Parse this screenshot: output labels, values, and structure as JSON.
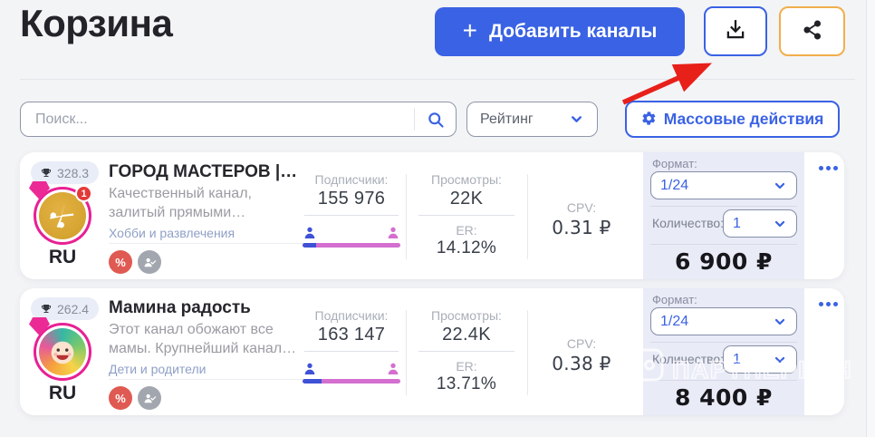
{
  "page": {
    "title": "Корзина"
  },
  "header": {
    "add_button": {
      "plus": "+",
      "label": "Добавить каналы"
    }
  },
  "toolbar": {
    "search": {
      "placeholder": "Поиск..."
    },
    "sort": {
      "value": "Рейтинг"
    },
    "bulk_actions": {
      "label": "Массовые действия"
    }
  },
  "cards": [
    {
      "rating": "328.3",
      "language": "RU",
      "title": "ГОРОД МАСТЕРОВ |…",
      "description": "Качественный канал, залитый прямыми…",
      "category": "Хобби и развлечения",
      "notification_count": "1",
      "badges": {
        "percent": "%"
      },
      "stats": {
        "subscribers_label": "Подписчики:",
        "subscribers": "155 976",
        "male_percent": 14,
        "views_label": "Просмотры:",
        "views": "22K",
        "er_label": "ER:",
        "er": "14.12%",
        "cpv_label": "CPV:",
        "cpv": "0.31 ₽"
      },
      "order": {
        "format_label": "Формат:",
        "format": "1/24",
        "quantity_label": "Количество:",
        "quantity": "1",
        "price": "6 900 ₽"
      }
    },
    {
      "rating": "262.4",
      "language": "RU",
      "title": "Мамина радость",
      "description": "Этот канал обожают все мамы. Крупнейший канал…",
      "category": "Дети и родители",
      "badges": {
        "percent": "%"
      },
      "stats": {
        "subscribers_label": "Подписчики:",
        "subscribers": "163 147",
        "male_percent": 19,
        "views_label": "Просмотры:",
        "views": "22.4K",
        "er_label": "ER:",
        "er": "13.71%",
        "cpv_label": "CPV:",
        "cpv": "0.38 ₽"
      },
      "order": {
        "format_label": "Формат:",
        "format": "1/24",
        "quantity_label": "Количество:",
        "quantity": "1",
        "price": "8 400 ₽"
      }
    }
  ],
  "watermark": {
    "text": "ПАРТНЕРКИН"
  },
  "colors": {
    "accent": "#3a62e4",
    "warning_border": "#f2ae4c",
    "arrow_red": "#e8201a",
    "badge_red": "#df5a52",
    "badge_gray": "#a2a7af",
    "avatar_ring": "#e82093",
    "panel_bg": "#e9ebf7",
    "male": "#3f51d6",
    "female": "#d46fd0"
  }
}
